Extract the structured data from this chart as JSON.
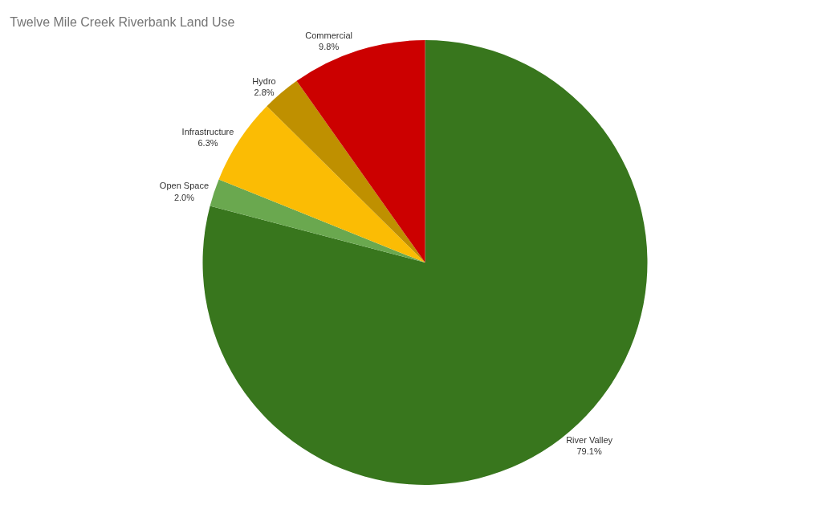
{
  "chart_data": {
    "type": "pie",
    "title": "Twelve Mile Creek Riverbank Land Use",
    "categories": [
      "River Valley",
      "Open Space",
      "Infrastructure",
      "Hydro",
      "Commercial"
    ],
    "values": [
      79.1,
      2.0,
      6.3,
      2.8,
      9.8
    ],
    "value_labels": [
      "79.1%",
      "2.0%",
      "6.3%",
      "2.8%",
      "9.8%"
    ],
    "colors": [
      "#38761d",
      "#6aa84f",
      "#fbbc04",
      "#bf9000",
      "#cc0000"
    ],
    "legend": false
  }
}
